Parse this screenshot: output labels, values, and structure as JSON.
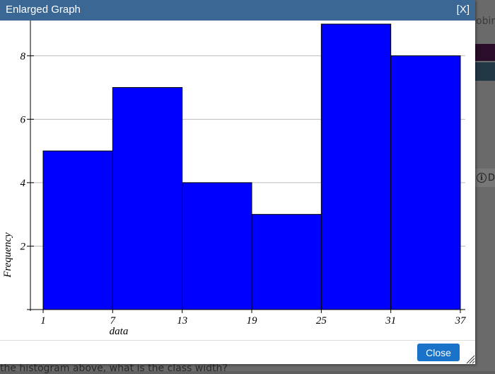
{
  "background": {
    "right_text": "obin",
    "info_label": "D",
    "bottom_text": "the histogram above, what is the class width?"
  },
  "dialog": {
    "title": "Enlarged Graph",
    "close_x": "[X]",
    "close_button": "Close"
  },
  "colors": {
    "titlebar": "#3a6794",
    "bar_fill": "#0000ff",
    "button": "#1a73c9"
  },
  "chart_data": {
    "type": "bar",
    "histogram": true,
    "bin_edges": [
      1,
      7,
      13,
      19,
      25,
      31,
      37
    ],
    "values": [
      5,
      7,
      4,
      3,
      9,
      8
    ],
    "xlabel": "data",
    "ylabel": "Frequency",
    "y_ticks": [
      2,
      4,
      6,
      8
    ],
    "grid": true
  }
}
